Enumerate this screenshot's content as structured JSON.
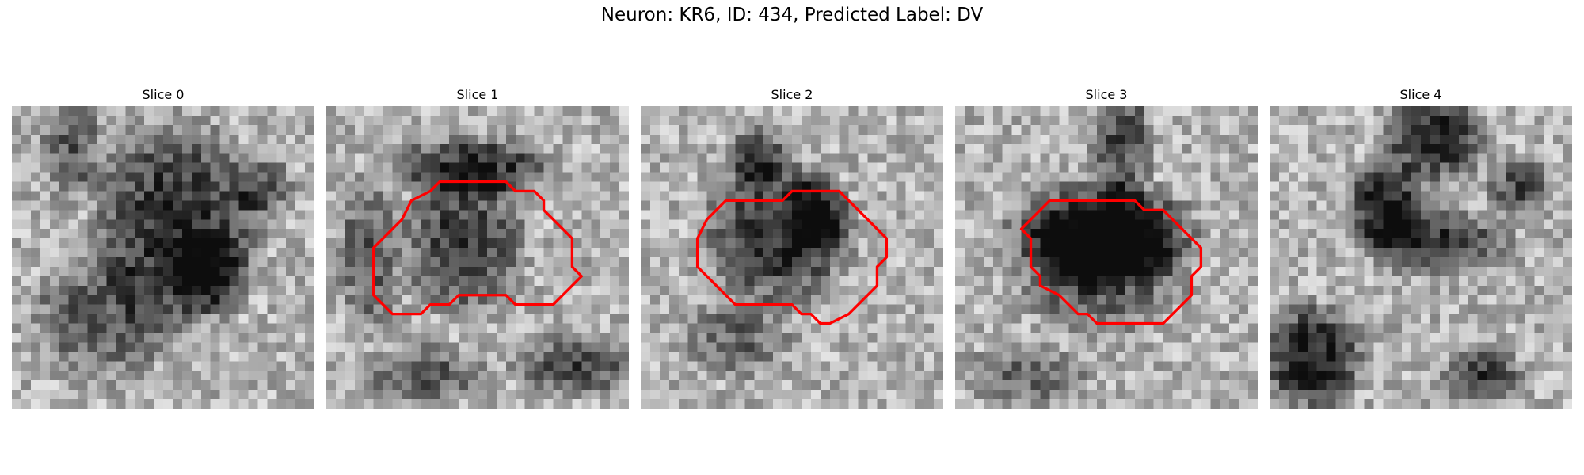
{
  "figure": {
    "title": "Neuron: KR6, ID: 434, Predicted Label: DV"
  },
  "slices": [
    {
      "title": "Slice 0",
      "has_outline": false
    },
    {
      "title": "Slice 1",
      "has_outline": true
    },
    {
      "title": "Slice 2",
      "has_outline": true
    },
    {
      "title": "Slice 3",
      "has_outline": true
    },
    {
      "title": "Slice 4",
      "has_outline": false
    }
  ],
  "colors": {
    "outline": "#ff0000",
    "colormap": "gray"
  }
}
